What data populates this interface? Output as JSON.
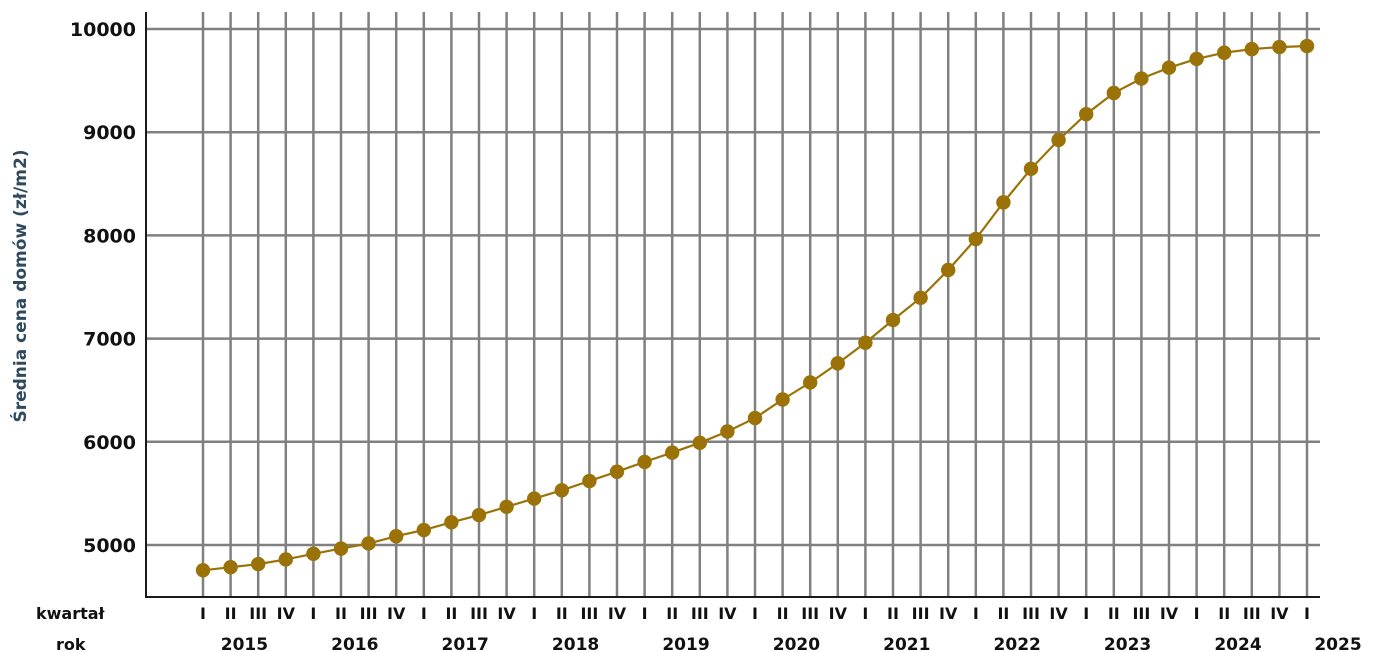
{
  "chart_data": {
    "type": "line",
    "ylabel": "Średnia cena domów (zł/m2)",
    "ylim": [
      4800,
      10150
    ],
    "y_ticks": [
      5000,
      6000,
      7000,
      8000,
      9000,
      10000
    ],
    "grid": true,
    "quarter_axis_label": "kwartał",
    "year_axis_label": "rok",
    "quarters": [
      "I",
      "II",
      "III",
      "IV",
      "I",
      "II",
      "III",
      "IV",
      "I",
      "II",
      "III",
      "IV",
      "I",
      "II",
      "III",
      "IV",
      "I",
      "II",
      "III",
      "IV",
      "I",
      "II",
      "III",
      "IV",
      "I",
      "II",
      "III",
      "IV",
      "I",
      "II",
      "III",
      "IV",
      "I",
      "II",
      "III",
      "IV",
      "I",
      "II",
      "III",
      "IV",
      "I"
    ],
    "years": [
      "2015",
      "2016",
      "2017",
      "2018",
      "2019",
      "2020",
      "2021",
      "2022",
      "2023",
      "2024",
      "2025"
    ],
    "point_color": "#9a7208",
    "line_color": "#9a7208",
    "values": [
      4755,
      4785,
      4815,
      4860,
      4915,
      4965,
      5015,
      5085,
      5145,
      5220,
      5290,
      5370,
      5450,
      5530,
      5620,
      5710,
      5805,
      5895,
      5990,
      6100,
      6230,
      6410,
      6575,
      6760,
      6960,
      7180,
      7395,
      7665,
      7965,
      8320,
      8645,
      8925,
      9175,
      9380,
      9520,
      9625,
      9710,
      9770,
      9805,
      9825,
      9835
    ]
  }
}
